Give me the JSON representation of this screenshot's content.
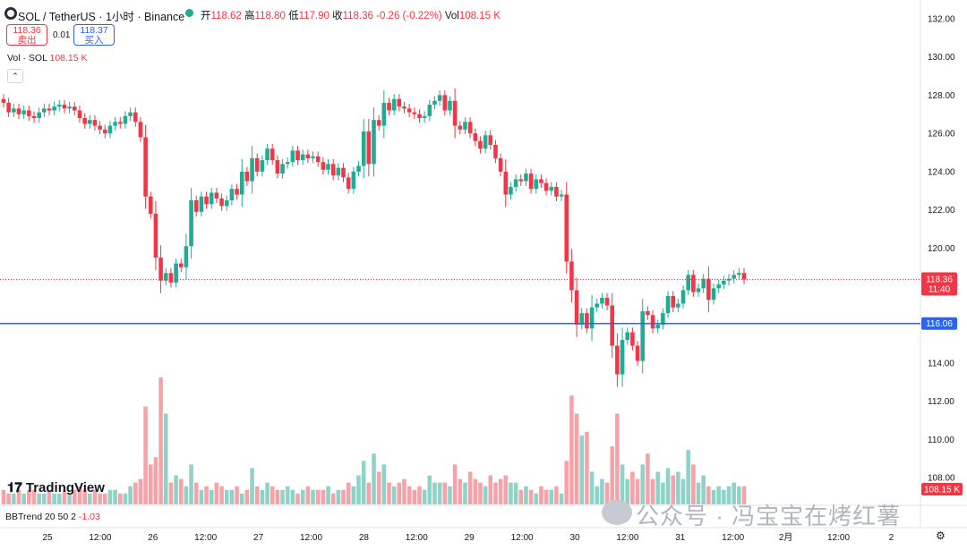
{
  "header": {
    "title": "SOL / TetherUS · 1小时 · Binance",
    "open_label": "开",
    "open": "118.62",
    "high_label": "高",
    "high": "118.80",
    "low_label": "低",
    "low": "117.90",
    "close_label": "收",
    "close": "118.36",
    "change": "-0.26 (-0.22%)",
    "vol_label": "Vol",
    "vol": "108.15 K"
  },
  "trade": {
    "sell_price": "118.36",
    "sell_label": "卖出",
    "spread": "0.01",
    "buy_price": "118.37",
    "buy_label": "买入"
  },
  "volume_indicator": {
    "label": "Vol · SOL",
    "value": "108.15 K"
  },
  "bbtrend": {
    "label": "BBTrend 20 50 2",
    "value": "-1.03"
  },
  "brand": "TradingView",
  "watermark": "公众号 · 冯宝宝在烤红薯",
  "colors": {
    "up": "#22ab94",
    "down": "#f23645",
    "up_vol": "#8fd3c8",
    "down_vol": "#f5a3a9",
    "hline": "#2962ff"
  },
  "chart_data": {
    "type": "candlestick",
    "symbol": "SOL / TetherUS",
    "interval": "1小时",
    "exchange": "Binance",
    "price_ticks": [
      132,
      130,
      128,
      126,
      124,
      122,
      120,
      118,
      116,
      114,
      112,
      110,
      108
    ],
    "price_tick_labels": [
      "132.00",
      "130.00",
      "128.00",
      "126.00",
      "124.00",
      "122.00",
      "120.00",
      "118.00",
      "116.00",
      "114.00",
      "112.00",
      "110.00",
      "108.00"
    ],
    "ylim": [
      106.6,
      132.6
    ],
    "x_labels": [
      "25",
      "12:00",
      "26",
      "12:00",
      "27",
      "12:00",
      "28",
      "12:00",
      "29",
      "12:00",
      "30",
      "12:00",
      "31",
      "12:00",
      "2月",
      "12:00",
      "2"
    ],
    "current_price": "118.36",
    "countdown": "11:40",
    "horizontal_line": {
      "value": 116.06,
      "label": "116.06"
    },
    "volume_label": "108.15 K",
    "closes": [
      127.6,
      127.1,
      127.3,
      127.0,
      127.2,
      126.9,
      126.8,
      127.1,
      127.3,
      127.2,
      127.4,
      127.5,
      127.3,
      127.4,
      127.2,
      126.8,
      126.5,
      126.7,
      126.4,
      126.2,
      126.0,
      126.4,
      126.6,
      126.5,
      126.9,
      127.1,
      126.6,
      125.8,
      122.7,
      121.8,
      119.5,
      118.3,
      118.7,
      118.2,
      119.2,
      119.0,
      120.1,
      122.5,
      121.9,
      122.7,
      122.3,
      122.9,
      122.6,
      122.2,
      122.5,
      123.1,
      122.8,
      124.0,
      123.5,
      124.7,
      124.0,
      124.6,
      125.2,
      124.6,
      123.9,
      124.4,
      124.5,
      125.1,
      124.6,
      124.9,
      124.7,
      124.8,
      124.5,
      124.1,
      124.4,
      123.8,
      124.2,
      123.7,
      123.1,
      124.0,
      124.3,
      126.1,
      124.4,
      126.7,
      126.4,
      127.6,
      127.2,
      127.8,
      127.4,
      127.3,
      127.1,
      127.0,
      126.8,
      126.9,
      127.5,
      127.7,
      128.0,
      127.2,
      127.7,
      126.4,
      126.2,
      126.6,
      126.0,
      125.6,
      125.2,
      125.9,
      125.4,
      124.7,
      124.0,
      122.8,
      123.2,
      123.6,
      123.5,
      123.9,
      123.1,
      123.6,
      123.4,
      123.0,
      123.2,
      122.7,
      122.8,
      119.3,
      117.8,
      116.0,
      116.6,
      115.8,
      116.9,
      117.1,
      117.4,
      117.0,
      114.9,
      113.4,
      115.2,
      115.6,
      114.9,
      114.1,
      116.7,
      116.5,
      115.8,
      116.0,
      116.6,
      117.5,
      116.9,
      117.1,
      117.8,
      118.6,
      117.7,
      117.9,
      118.4,
      117.3,
      117.9,
      118.1,
      118.3,
      118.4,
      118.6,
      118.7,
      118.36
    ],
    "volumes": [
      4,
      3,
      3,
      4,
      3,
      4,
      4,
      3,
      3,
      4,
      3,
      3,
      4,
      3,
      4,
      5,
      4,
      3,
      4,
      3,
      3,
      4,
      4,
      3,
      3,
      5,
      6,
      7,
      27,
      11,
      13,
      35,
      25,
      6,
      8,
      7,
      5,
      11,
      6,
      4,
      5,
      4,
      6,
      5,
      4,
      4,
      5,
      3,
      4,
      10,
      5,
      4,
      6,
      5,
      4,
      4,
      5,
      4,
      3,
      4,
      5,
      4,
      4,
      4,
      5,
      3,
      4,
      4,
      6,
      5,
      8,
      12,
      6,
      14,
      9,
      11,
      6,
      5,
      6,
      7,
      5,
      4,
      5,
      4,
      8,
      6,
      6,
      6,
      5,
      11,
      7,
      6,
      9,
      7,
      6,
      5,
      8,
      6,
      7,
      8,
      6,
      6,
      4,
      5,
      4,
      3,
      5,
      4,
      4,
      5,
      3,
      12,
      30,
      25,
      19,
      20,
      9,
      5,
      7,
      6,
      16,
      25,
      11,
      7,
      9,
      7,
      11,
      14,
      7,
      9,
      6,
      10,
      8,
      9,
      7,
      15,
      11,
      6,
      8,
      5,
      4,
      5,
      4,
      5,
      6,
      5,
      5
    ]
  }
}
